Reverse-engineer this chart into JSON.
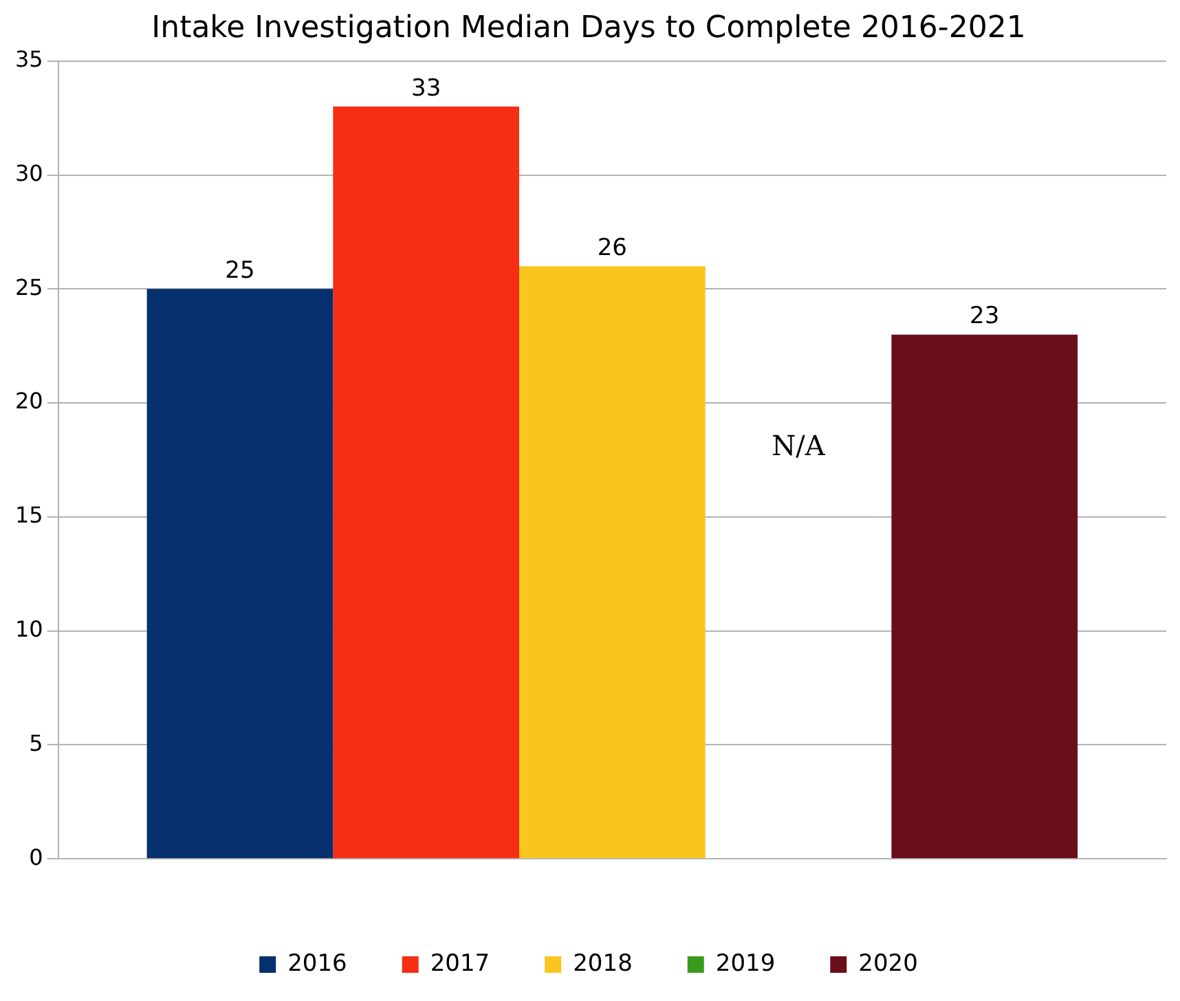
{
  "chart_data": {
    "type": "bar",
    "title": "Intake Investigation Median Days to Complete 2016-2021",
    "categories": [
      null
    ],
    "series": [
      {
        "name": "2016",
        "color": "#06306e",
        "values": [
          25
        ]
      },
      {
        "name": "2017",
        "color": "#f52e14",
        "values": [
          33
        ]
      },
      {
        "name": "2018",
        "color": "#fbc520",
        "values": [
          26
        ]
      },
      {
        "name": "2019",
        "color": "#3a9a1e",
        "values": [
          null
        ]
      },
      {
        "name": "2020",
        "color": "#6a0e1a",
        "values": [
          23
        ]
      }
    ],
    "ylim": [
      0,
      35
    ],
    "yticks": [
      0,
      5,
      10,
      15,
      20,
      25,
      30,
      35
    ],
    "grid": "y",
    "legend": "bottom",
    "data_labels": true,
    "annotations": [
      "N/A"
    ]
  }
}
